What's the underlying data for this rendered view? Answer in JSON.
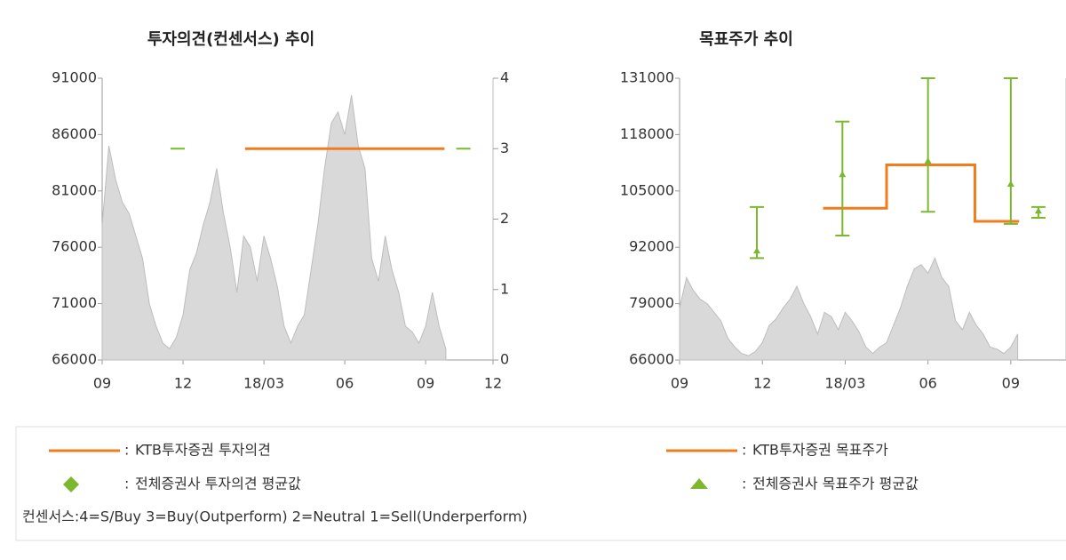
{
  "chart_data": [
    {
      "type": "combo",
      "title": "투자의견(컨센서스) 추이",
      "xlim": [
        0,
        14.5
      ],
      "xticks": [
        {
          "value": 0,
          "label": "09"
        },
        {
          "value": 3,
          "label": "12"
        },
        {
          "value": 6,
          "label": "18/03"
        },
        {
          "value": 9,
          "label": "06"
        },
        {
          "value": 12,
          "label": "09"
        },
        {
          "value": 14.5,
          "label": "12"
        }
      ],
      "ylim": [
        66000,
        91000
      ],
      "yticks": [
        66000,
        71000,
        76000,
        81000,
        86000,
        91000
      ],
      "y2lim": [
        0,
        4
      ],
      "y2ticks": [
        0,
        1,
        2,
        3,
        4
      ],
      "series": [
        {
          "type": "area",
          "color": "#d9d9d9",
          "x": [
            0,
            0.25,
            0.5,
            0.75,
            1,
            1.25,
            1.5,
            1.75,
            2,
            2.25,
            2.5,
            2.75,
            3,
            3.25,
            3.5,
            3.75,
            4,
            4.25,
            4.5,
            4.75,
            5,
            5.25,
            5.5,
            5.75,
            6,
            6.25,
            6.5,
            6.75,
            7,
            7.25,
            7.5,
            7.75,
            8,
            8.25,
            8.5,
            8.75,
            9,
            9.25,
            9.5,
            9.75,
            10,
            10.25,
            10.5,
            10.75,
            11,
            11.25,
            11.5,
            11.75,
            12,
            12.25,
            12.5,
            12.75
          ],
          "values": [
            78000,
            85000,
            82000,
            80000,
            79000,
            77000,
            75000,
            71000,
            69000,
            67500,
            67000,
            68000,
            70000,
            74000,
            75500,
            78000,
            80000,
            83000,
            79000,
            76000,
            72000,
            77000,
            76000,
            73000,
            77000,
            75000,
            72500,
            69000,
            67500,
            69000,
            70000,
            74000,
            78000,
            83000,
            87000,
            88000,
            86000,
            89500,
            85000,
            83000,
            75000,
            73000,
            77000,
            74000,
            72000,
            69000,
            68500,
            67500,
            69000,
            72000,
            69000,
            67000
          ]
        },
        {
          "type": "line",
          "name": "KTB투자증권 투자의견",
          "axis": "y2",
          "color": "#f07c1e",
          "x": [
            5.3,
            12.7
          ],
          "values": [
            3,
            3
          ]
        },
        {
          "type": "marker",
          "marker": "diamond",
          "name": "전체증권사 투자의견 평균값",
          "axis": "y2",
          "color": "#7cb82f",
          "x": [
            2.8,
            13.4
          ],
          "values": [
            3,
            3
          ]
        }
      ]
    },
    {
      "type": "combo",
      "title": "목표주가 추이",
      "xlim": [
        0,
        14
      ],
      "xticks": [
        {
          "value": 0,
          "label": "09"
        },
        {
          "value": 3,
          "label": "12"
        },
        {
          "value": 6,
          "label": "18/03"
        },
        {
          "value": 9,
          "label": "06"
        },
        {
          "value": 12,
          "label": "09"
        }
      ],
      "ylim": [
        66000,
        131000
      ],
      "yticks": [
        66000,
        79000,
        92000,
        105000,
        118000,
        131000
      ],
      "series": [
        {
          "type": "area",
          "color": "#d9d9d9",
          "x": [
            0,
            0.25,
            0.5,
            0.75,
            1,
            1.25,
            1.5,
            1.75,
            2,
            2.25,
            2.5,
            2.75,
            3,
            3.25,
            3.5,
            3.75,
            4,
            4.25,
            4.5,
            4.75,
            5,
            5.25,
            5.5,
            5.75,
            6,
            6.25,
            6.5,
            6.75,
            7,
            7.25,
            7.5,
            7.75,
            8,
            8.25,
            8.5,
            8.75,
            9,
            9.25,
            9.5,
            9.75,
            10,
            10.25,
            10.5,
            10.75,
            11,
            11.25,
            11.5,
            11.75,
            12,
            12.25
          ],
          "values": [
            78000,
            85000,
            82000,
            80000,
            79000,
            77000,
            75000,
            71000,
            69000,
            67500,
            67000,
            68000,
            70000,
            74000,
            75500,
            78000,
            80000,
            83000,
            79000,
            76000,
            72000,
            77000,
            76000,
            73000,
            77000,
            75000,
            72500,
            69000,
            67500,
            69000,
            70000,
            74000,
            78000,
            83000,
            87000,
            88000,
            86000,
            89500,
            85000,
            83000,
            75000,
            73000,
            77000,
            74000,
            72000,
            69000,
            68500,
            67500,
            69000,
            72000
          ]
        },
        {
          "type": "line",
          "name": "KTB투자증권 목표주가",
          "color": "#f07c1e",
          "x": [
            5.2,
            7.5,
            7.5,
            10.7,
            10.7,
            12.3
          ],
          "values": [
            101000,
            101000,
            111000,
            111000,
            98000,
            98000
          ]
        },
        {
          "type": "errorbar",
          "marker": "triangle",
          "name": "전체증권사 목표주가 평균값",
          "color": "#7cb82f",
          "x": [
            2.8,
            5.9,
            9,
            12,
            13
          ],
          "values": [
            91000,
            108600,
            111700,
            106400,
            100200
          ],
          "low": [
            89500,
            94700,
            100200,
            97400,
            98800
          ],
          "high": [
            101300,
            121000,
            131000,
            131000,
            101300
          ]
        }
      ]
    }
  ],
  "legend_separator": ":",
  "consensus_note": "컨센서스:4=S/Buy    3=Buy(Outperform)  2=Neutral   1=Sell(Underperform)"
}
